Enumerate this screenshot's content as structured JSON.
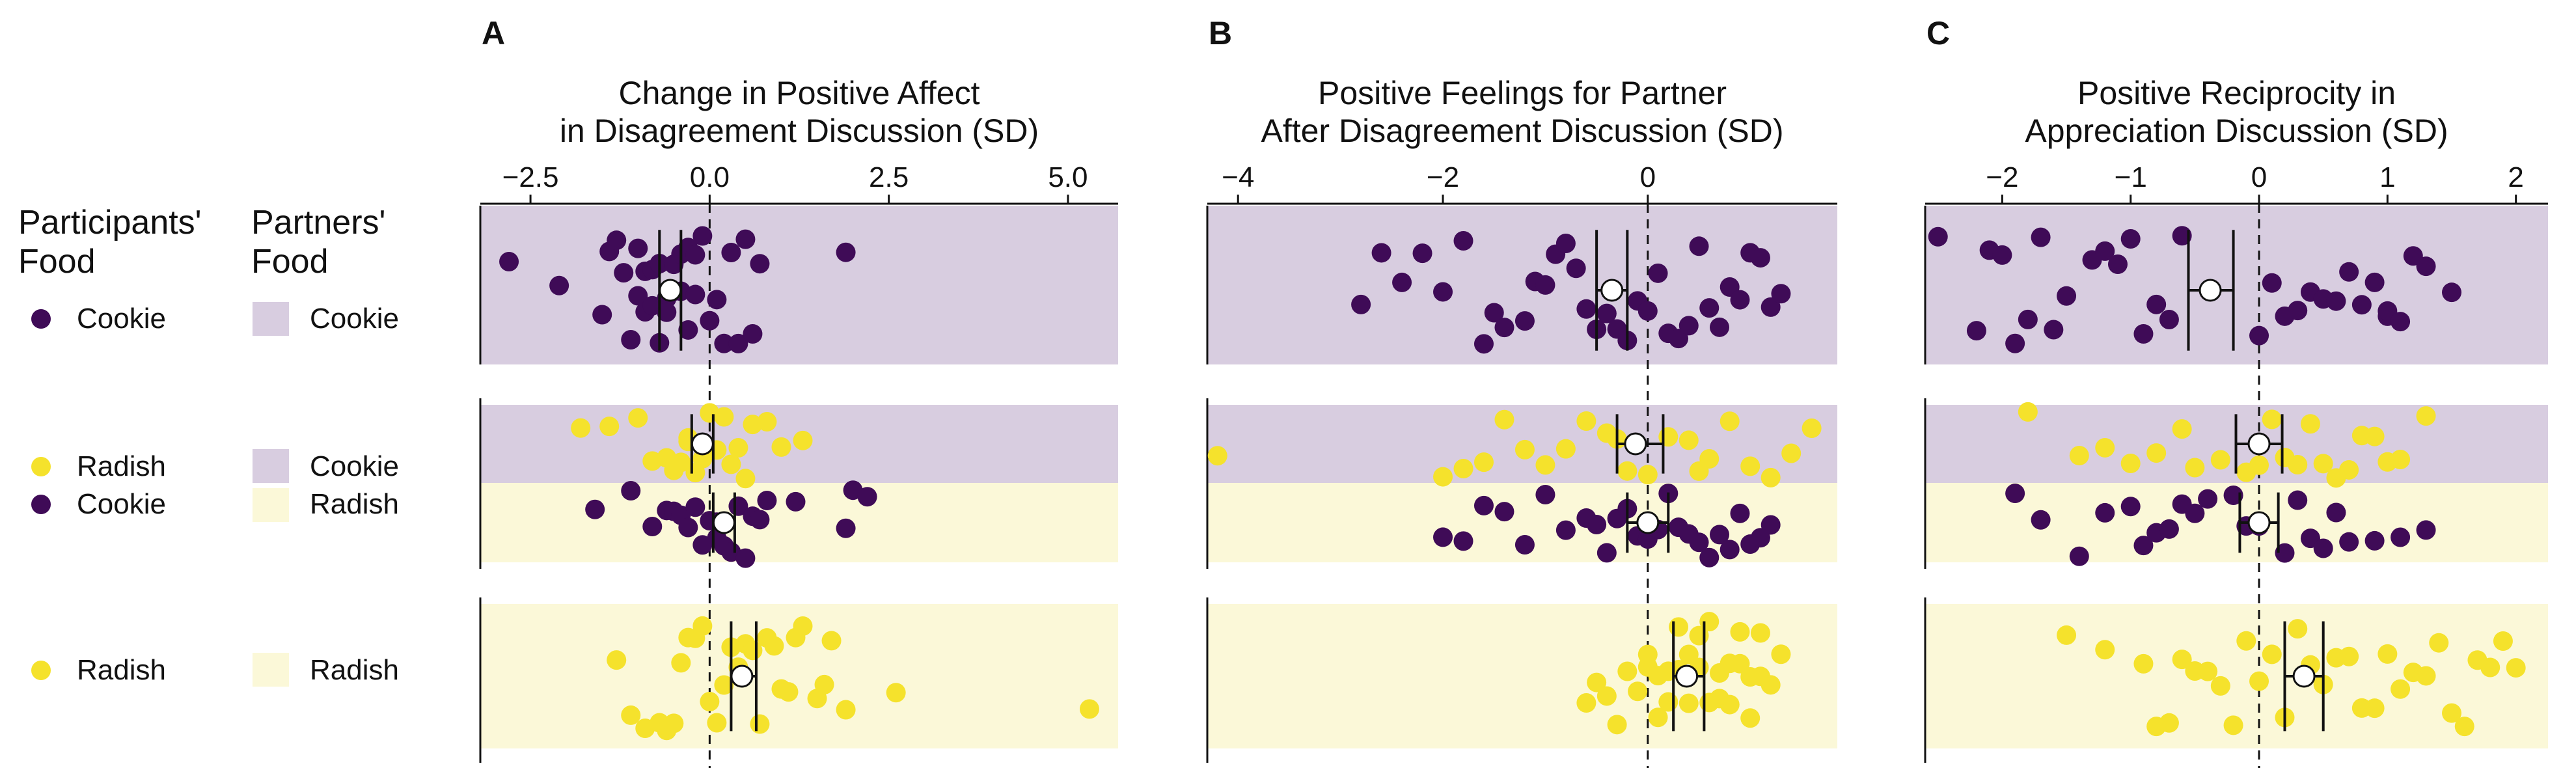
{
  "colors": {
    "cookie": "#3f0b57",
    "radish": "#f5e22c",
    "cookie_band": "#d8cde0",
    "radish_band": "#fbf8d8",
    "mean_marker": "#ffffff"
  },
  "legend": {
    "participants_header_line1": "Participants'",
    "participants_header_line2": "Food",
    "partners_header_line1": "Partners'",
    "partners_header_line2": "Food",
    "groups": [
      {
        "participant": "Cookie",
        "partner": "Cookie"
      },
      {
        "participant": "Radish",
        "partner": "Cookie"
      },
      {
        "participant": "Cookie",
        "partner": "Radish"
      },
      {
        "participant": "Radish",
        "partner": "Radish"
      }
    ]
  },
  "chart_data": [
    {
      "type": "scatter",
      "panel_letter": "A",
      "title": "Change in Positive Affect\nin Disagreement Discussion (SD)",
      "x_ticks": [
        -2.5,
        0.0,
        2.5,
        5.0
      ],
      "x_tick_labels": [
        "−2.5",
        "0.0",
        "2.5",
        "5.0"
      ],
      "xlim": [
        -3.2,
        5.7
      ],
      "reference_line": 0,
      "series": [
        {
          "participant": "Cookie",
          "partner": "Cookie",
          "mean": -0.55,
          "ci": [
            -0.7,
            -0.4
          ],
          "values": [
            -2.8,
            -2.1,
            -1.5,
            -1.4,
            -1.3,
            -1.2,
            -1.1,
            -1.0,
            -1.0,
            -0.9,
            -0.9,
            -0.8,
            -0.8,
            -0.7,
            -0.7,
            -0.6,
            -0.6,
            -0.5,
            -0.5,
            -0.4,
            -0.4,
            -0.3,
            -0.3,
            -0.2,
            -0.2,
            -0.1,
            0.0,
            0.1,
            0.2,
            0.3,
            0.4,
            0.5,
            0.6,
            0.7,
            1.9
          ]
        },
        {
          "participant": "Radish",
          "partner": "Cookie",
          "mean": -0.1,
          "ci": [
            -0.25,
            0.05
          ],
          "values": [
            -1.8,
            -1.4,
            -1.0,
            -0.8,
            -0.6,
            -0.5,
            -0.4,
            -0.3,
            -0.3,
            -0.2,
            -0.1,
            0.0,
            0.0,
            0.1,
            0.2,
            0.3,
            0.4,
            0.5,
            0.6,
            0.8,
            1.0,
            1.3
          ]
        },
        {
          "participant": "Cookie",
          "partner": "Radish",
          "mean": 0.2,
          "ci": [
            0.05,
            0.35
          ],
          "values": [
            -1.6,
            -1.1,
            -0.8,
            -0.6,
            -0.5,
            -0.4,
            -0.3,
            -0.2,
            -0.1,
            0.0,
            0.1,
            0.1,
            0.2,
            0.3,
            0.4,
            0.5,
            0.6,
            0.7,
            0.8,
            1.2,
            1.9,
            2.0,
            2.2
          ]
        },
        {
          "participant": "Radish",
          "partner": "Radish",
          "mean": 0.45,
          "ci": [
            0.3,
            0.65
          ],
          "values": [
            -1.3,
            -1.1,
            -0.9,
            -0.7,
            -0.6,
            -0.5,
            -0.4,
            -0.3,
            -0.2,
            -0.1,
            0.0,
            0.1,
            0.2,
            0.3,
            0.4,
            0.5,
            0.6,
            0.7,
            0.8,
            0.9,
            1.0,
            1.1,
            1.2,
            1.3,
            1.5,
            1.6,
            1.7,
            1.9,
            2.6,
            5.3
          ]
        }
      ]
    },
    {
      "type": "scatter",
      "panel_letter": "B",
      "title": "Positive Feelings for Partner\nAfter Disagreement Discussion (SD)",
      "x_ticks": [
        -4,
        -2,
        0
      ],
      "x_tick_labels": [
        "−4",
        "−2",
        "0"
      ],
      "xlim": [
        -4.3,
        1.85
      ],
      "reference_line": 0,
      "series": [
        {
          "participant": "Cookie",
          "partner": "Cookie",
          "mean": -0.35,
          "ci": [
            -0.5,
            -0.2
          ],
          "values": [
            -2.8,
            -2.6,
            -2.4,
            -2.2,
            -2.0,
            -1.8,
            -1.6,
            -1.5,
            -1.4,
            -1.2,
            -1.1,
            -1.0,
            -0.9,
            -0.8,
            -0.7,
            -0.6,
            -0.5,
            -0.4,
            -0.3,
            -0.2,
            -0.1,
            0.0,
            0.1,
            0.2,
            0.3,
            0.4,
            0.5,
            0.6,
            0.7,
            0.8,
            0.9,
            1.0,
            1.1,
            1.2,
            1.3
          ]
        },
        {
          "participant": "Radish",
          "partner": "Cookie",
          "mean": -0.12,
          "ci": [
            -0.3,
            0.15
          ],
          "values": [
            -4.2,
            -2.0,
            -1.8,
            -1.6,
            -1.4,
            -1.2,
            -1.0,
            -0.8,
            -0.6,
            -0.4,
            -0.3,
            -0.2,
            0.0,
            0.2,
            0.4,
            0.5,
            0.6,
            0.8,
            1.0,
            1.2,
            1.4,
            1.6
          ]
        },
        {
          "participant": "Cookie",
          "partner": "Radish",
          "mean": 0.0,
          "ci": [
            -0.2,
            0.2
          ],
          "values": [
            -2.0,
            -1.8,
            -1.6,
            -1.4,
            -1.2,
            -1.0,
            -0.8,
            -0.6,
            -0.5,
            -0.4,
            -0.3,
            -0.2,
            -0.1,
            0.0,
            0.1,
            0.2,
            0.3,
            0.4,
            0.5,
            0.6,
            0.7,
            0.8,
            0.9,
            1.0,
            1.1,
            1.2
          ]
        },
        {
          "participant": "Radish",
          "partner": "Radish",
          "mean": 0.38,
          "ci": [
            0.25,
            0.55
          ],
          "values": [
            -0.6,
            -0.5,
            -0.4,
            -0.3,
            -0.2,
            -0.1,
            0.0,
            0.0,
            0.1,
            0.1,
            0.2,
            0.2,
            0.3,
            0.3,
            0.4,
            0.4,
            0.5,
            0.5,
            0.6,
            0.6,
            0.7,
            0.7,
            0.8,
            0.8,
            0.9,
            0.9,
            1.0,
            1.0,
            1.1,
            1.1,
            1.2,
            1.3
          ]
        }
      ]
    },
    {
      "type": "scatter",
      "panel_letter": "C",
      "title": "Positive Reciprocity in\nAppreciation Discussion (SD)",
      "x_ticks": [
        -2,
        -1,
        0,
        1,
        2
      ],
      "x_tick_labels": [
        "−2",
        "−1",
        "0",
        "1",
        "2"
      ],
      "xlim": [
        -2.6,
        2.25
      ],
      "reference_line": 0,
      "series": [
        {
          "participant": "Cookie",
          "partner": "Cookie",
          "mean": -0.38,
          "ci": [
            -0.55,
            -0.2
          ],
          "values": [
            -2.5,
            -2.2,
            -2.1,
            -2.0,
            -1.9,
            -1.8,
            -1.7,
            -1.6,
            -1.5,
            -1.3,
            -1.2,
            -1.1,
            -1.0,
            -0.9,
            -0.8,
            -0.7,
            -0.6,
            0.0,
            0.1,
            0.2,
            0.3,
            0.4,
            0.5,
            0.6,
            0.7,
            0.8,
            0.9,
            1.0,
            1.0,
            1.1,
            1.2,
            1.3,
            1.5
          ]
        },
        {
          "participant": "Radish",
          "partner": "Cookie",
          "mean": 0.0,
          "ci": [
            -0.18,
            0.18
          ],
          "values": [
            -1.8,
            -1.4,
            -1.2,
            -1.0,
            -0.8,
            -0.6,
            -0.5,
            -0.3,
            -0.1,
            0.0,
            0.1,
            0.2,
            0.3,
            0.4,
            0.5,
            0.6,
            0.7,
            0.8,
            0.9,
            1.0,
            1.1,
            1.3
          ]
        },
        {
          "participant": "Cookie",
          "partner": "Radish",
          "mean": 0.0,
          "ci": [
            -0.15,
            0.15
          ],
          "values": [
            -1.9,
            -1.7,
            -1.4,
            -1.2,
            -1.0,
            -0.9,
            -0.8,
            -0.7,
            -0.6,
            -0.5,
            -0.4,
            -0.2,
            -0.1,
            0.0,
            0.2,
            0.3,
            0.4,
            0.5,
            0.6,
            0.7,
            0.9,
            1.1,
            1.3
          ]
        },
        {
          "participant": "Radish",
          "partner": "Radish",
          "mean": 0.35,
          "ci": [
            0.2,
            0.5
          ],
          "values": [
            -1.5,
            -1.2,
            -0.9,
            -0.8,
            -0.7,
            -0.6,
            -0.5,
            -0.4,
            -0.3,
            -0.2,
            -0.1,
            0.0,
            0.1,
            0.2,
            0.3,
            0.4,
            0.5,
            0.6,
            0.7,
            0.8,
            0.9,
            1.0,
            1.1,
            1.2,
            1.3,
            1.4,
            1.5,
            1.6,
            1.7,
            1.8,
            1.9,
            2.0
          ]
        }
      ]
    }
  ]
}
